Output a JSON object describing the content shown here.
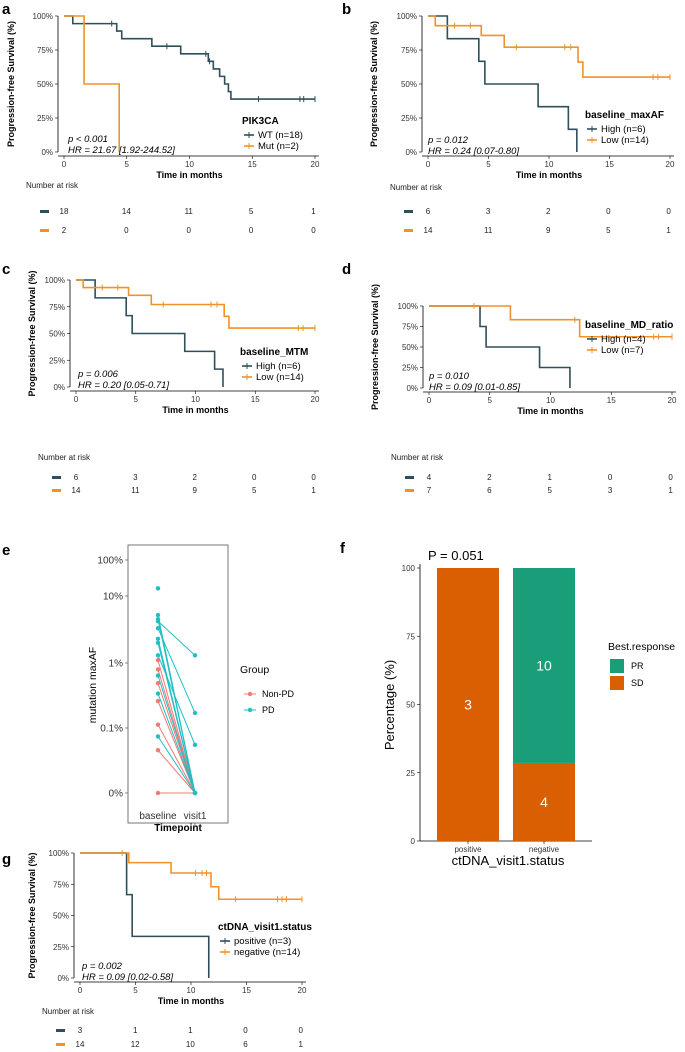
{
  "colors": {
    "dark": "#2f4f5a",
    "orange": "#f0922b",
    "pink": "#f07a74",
    "teal": "#1fbfc4",
    "pr": "#1a9e79",
    "sd": "#d95f02"
  },
  "common": {
    "yaxis_label": "Progression-free Survival (%)",
    "xaxis_label": "Time in months",
    "risk_title": "Number at risk",
    "y_ticks": [
      "0%",
      "25%",
      "50%",
      "75%",
      "100%"
    ],
    "x_ticks": [
      "0",
      "5",
      "10",
      "15",
      "20"
    ]
  },
  "chart_data": [
    {
      "panel": "a",
      "type": "line",
      "subtype": "kaplan-meier",
      "xlim": [
        0,
        20
      ],
      "ylim": [
        0,
        100
      ],
      "legend_title": "PIK3CA",
      "stat_p": "p < 0.001",
      "stat_hr": "HR = 21.67 [1.92-244.52]",
      "series": [
        {
          "name": "WT (n=18)",
          "color": "dark",
          "steps": [
            [
              0,
              100
            ],
            [
              0.7,
              94.4
            ],
            [
              4.2,
              88.9
            ],
            [
              4.6,
              83.3
            ],
            [
              7,
              77.8
            ],
            [
              9.3,
              72.2
            ],
            [
              11.5,
              66.7
            ],
            [
              11.9,
              61.1
            ],
            [
              12.4,
              55.6
            ],
            [
              12.8,
              50
            ],
            [
              13.1,
              44.4
            ],
            [
              13.3,
              38.9
            ],
            [
              20,
              38.9
            ]
          ],
          "censor": [
            [
              3.8,
              94.4
            ],
            [
              8.2,
              77.8
            ],
            [
              11.3,
              72.2
            ],
            [
              11.6,
              66.7
            ],
            [
              15.5,
              38.9
            ],
            [
              18.8,
              38.9
            ],
            [
              19.1,
              38.9
            ],
            [
              20,
              38.9
            ]
          ]
        },
        {
          "name": "Mut (n=2)",
          "color": "orange",
          "steps": [
            [
              0,
              100
            ],
            [
              1.6,
              50
            ],
            [
              4.4,
              0
            ]
          ],
          "censor": []
        }
      ],
      "risk": [
        [
          18,
          14,
          11,
          5,
          1
        ],
        [
          2,
          0,
          0,
          0,
          0
        ]
      ]
    },
    {
      "panel": "b",
      "type": "line",
      "subtype": "kaplan-meier",
      "xlim": [
        0,
        20
      ],
      "ylim": [
        0,
        100
      ],
      "legend_title": "baseline_maxAF",
      "stat_p": "p = 0.012",
      "stat_hr": "HR = 0.24 [0.07-0.80]",
      "series": [
        {
          "name": "High (n=6)",
          "color": "dark",
          "steps": [
            [
              0,
              100
            ],
            [
              1.6,
              83.3
            ],
            [
              4.2,
              66.7
            ],
            [
              4.7,
              50
            ],
            [
              9.1,
              33.3
            ],
            [
              11.6,
              16.7
            ],
            [
              12.3,
              0
            ]
          ],
          "censor": []
        },
        {
          "name": "Low (n=14)",
          "color": "orange",
          "steps": [
            [
              0,
              100
            ],
            [
              0.6,
              92.9
            ],
            [
              4.4,
              85.7
            ],
            [
              6.3,
              77.1
            ],
            [
              12.4,
              66.1
            ],
            [
              12.8,
              55.1
            ],
            [
              20,
              55.1
            ]
          ],
          "censor": [
            [
              2.2,
              92.9
            ],
            [
              3.5,
              92.9
            ],
            [
              7.3,
              77.1
            ],
            [
              11.3,
              77.1
            ],
            [
              11.8,
              77.1
            ],
            [
              18.6,
              55.1
            ],
            [
              19,
              55.1
            ],
            [
              20,
              55.1
            ]
          ]
        }
      ],
      "risk": [
        [
          6,
          3,
          2,
          0,
          0
        ],
        [
          14,
          11,
          9,
          5,
          1
        ]
      ]
    },
    {
      "panel": "c",
      "type": "line",
      "subtype": "kaplan-meier",
      "xlim": [
        0,
        20
      ],
      "ylim": [
        0,
        100
      ],
      "legend_title": "baseline_MTM",
      "stat_p": "p = 0.006",
      "stat_hr": "HR = 0.20 [0.05-0.71]",
      "series": [
        {
          "name": "High (n=6)",
          "color": "dark",
          "steps": [
            [
              0,
              100
            ],
            [
              1.6,
              83.3
            ],
            [
              4.2,
              66.7
            ],
            [
              4.7,
              50
            ],
            [
              9.1,
              33.3
            ],
            [
              11.6,
              16.7
            ],
            [
              12.3,
              0
            ]
          ],
          "censor": []
        },
        {
          "name": "Low (n=14)",
          "color": "orange",
          "steps": [
            [
              0,
              100
            ],
            [
              0.6,
              92.9
            ],
            [
              4.4,
              85.7
            ],
            [
              6.3,
              77.1
            ],
            [
              12.4,
              66.1
            ],
            [
              12.8,
              55.1
            ],
            [
              20,
              55.1
            ]
          ],
          "censor": [
            [
              2.2,
              92.9
            ],
            [
              3.5,
              92.9
            ],
            [
              7.3,
              77.1
            ],
            [
              11.3,
              77.1
            ],
            [
              11.8,
              77.1
            ],
            [
              18.6,
              55.1
            ],
            [
              19,
              55.1
            ],
            [
              20,
              55.1
            ]
          ]
        }
      ],
      "risk": [
        [
          6,
          3,
          2,
          0,
          0
        ],
        [
          14,
          11,
          9,
          5,
          1
        ]
      ]
    },
    {
      "panel": "d",
      "type": "line",
      "subtype": "kaplan-meier",
      "xlim": [
        0,
        20
      ],
      "ylim": [
        0,
        100
      ],
      "legend_title": "baseline_MD_ratio",
      "stat_p": "p = 0.010",
      "stat_hr": "HR = 0.09 [0.01-0.85]",
      "series": [
        {
          "name": "High (n=4)",
          "color": "dark",
          "steps": [
            [
              0,
              100
            ],
            [
              4.2,
              75
            ],
            [
              4.7,
              50
            ],
            [
              9.1,
              25
            ],
            [
              11.6,
              0
            ]
          ],
          "censor": []
        },
        {
          "name": "Low (n=7)",
          "color": "orange",
          "steps": [
            [
              0,
              100
            ],
            [
              6.7,
              83.3
            ],
            [
              12.4,
              62.5
            ],
            [
              20,
              62.5
            ]
          ],
          "censor": [
            [
              3.7,
              100
            ],
            [
              12,
              83.3
            ],
            [
              18.5,
              62.5
            ],
            [
              18.9,
              62.5
            ],
            [
              20,
              62.5
            ]
          ]
        }
      ],
      "risk": [
        [
          4,
          2,
          1,
          0,
          0
        ],
        [
          7,
          6,
          5,
          3,
          1
        ]
      ]
    },
    {
      "panel": "e",
      "type": "scatter",
      "subtype": "paired-dot",
      "xlabel": "Timepoint",
      "ylabel": "mutation maxAF",
      "categories": [
        "baseline",
        "visit1"
      ],
      "y_ticks": [
        "0%",
        "0.1%",
        "1%",
        "10%",
        "100%"
      ],
      "legend_title": "Group",
      "groups": [
        {
          "name": "Non-PD",
          "color": "pink",
          "pairs": [
            [
              1.1,
              0
            ],
            [
              0.8,
              0
            ],
            [
              0.5,
              0
            ],
            [
              0.27,
              0
            ],
            [
              0.12,
              0
            ],
            [
              0.05,
              0
            ],
            [
              0,
              0
            ]
          ]
        },
        {
          "name": "PD",
          "color": "teal",
          "pairs": [
            [
              13,
              null
            ],
            [
              5.2,
              0
            ],
            [
              4.2,
              1.3
            ],
            [
              3.3,
              0.18
            ],
            [
              2.3,
              0
            ],
            [
              2.0,
              0
            ],
            [
              1.3,
              0.06
            ],
            [
              0.65,
              0
            ],
            [
              0.35,
              0
            ],
            [
              0.08,
              0
            ],
            [
              4.5,
              0
            ]
          ]
        }
      ]
    },
    {
      "panel": "f",
      "type": "bar",
      "subtype": "stacked-percent",
      "annotation": "P = 0.051",
      "xlabel": "ctDNA_visit1.status",
      "ylabel": "Percentage (%)",
      "categories": [
        "positive",
        "negative"
      ],
      "ylim": [
        0,
        100
      ],
      "y_ticks": [
        "0",
        "25",
        "50",
        "75",
        "100"
      ],
      "legend_title": "Best.response",
      "series": [
        {
          "name": "SD",
          "color": "sd",
          "values": [
            100,
            28.6
          ],
          "counts": [
            "3",
            "4"
          ]
        },
        {
          "name": "PR",
          "color": "pr",
          "values": [
            0,
            71.4
          ],
          "counts": [
            "",
            "10"
          ]
        }
      ],
      "legend_order": [
        "PR",
        "SD"
      ]
    },
    {
      "panel": "g",
      "type": "line",
      "subtype": "kaplan-meier",
      "xlim": [
        0,
        20
      ],
      "ylim": [
        0,
        100
      ],
      "legend_title": "ctDNA_visit1.status",
      "stat_p": "p = 0.002",
      "stat_hr": "HR = 0.09 [0.02-0.58]",
      "series": [
        {
          "name": "positive (n=3)",
          "color": "dark",
          "steps": [
            [
              0,
              100
            ],
            [
              4.2,
              66.7
            ],
            [
              4.7,
              33.3
            ],
            [
              11.6,
              0
            ]
          ],
          "censor": []
        },
        {
          "name": "negative (n=14)",
          "color": "orange",
          "steps": [
            [
              0,
              100
            ],
            [
              4.4,
              92.3
            ],
            [
              8.2,
              84
            ],
            [
              11.8,
              73
            ],
            [
              12.5,
              63
            ],
            [
              20,
              63
            ]
          ],
          "censor": [
            [
              3.8,
              100
            ],
            [
              10.4,
              84
            ],
            [
              11,
              84
            ],
            [
              11.4,
              84
            ],
            [
              14,
              63
            ],
            [
              17.8,
              63
            ],
            [
              18.2,
              63
            ],
            [
              18.6,
              63
            ],
            [
              20,
              63
            ]
          ]
        }
      ],
      "risk": [
        [
          3,
          1,
          1,
          0,
          0
        ],
        [
          14,
          12,
          10,
          6,
          1
        ]
      ]
    }
  ]
}
